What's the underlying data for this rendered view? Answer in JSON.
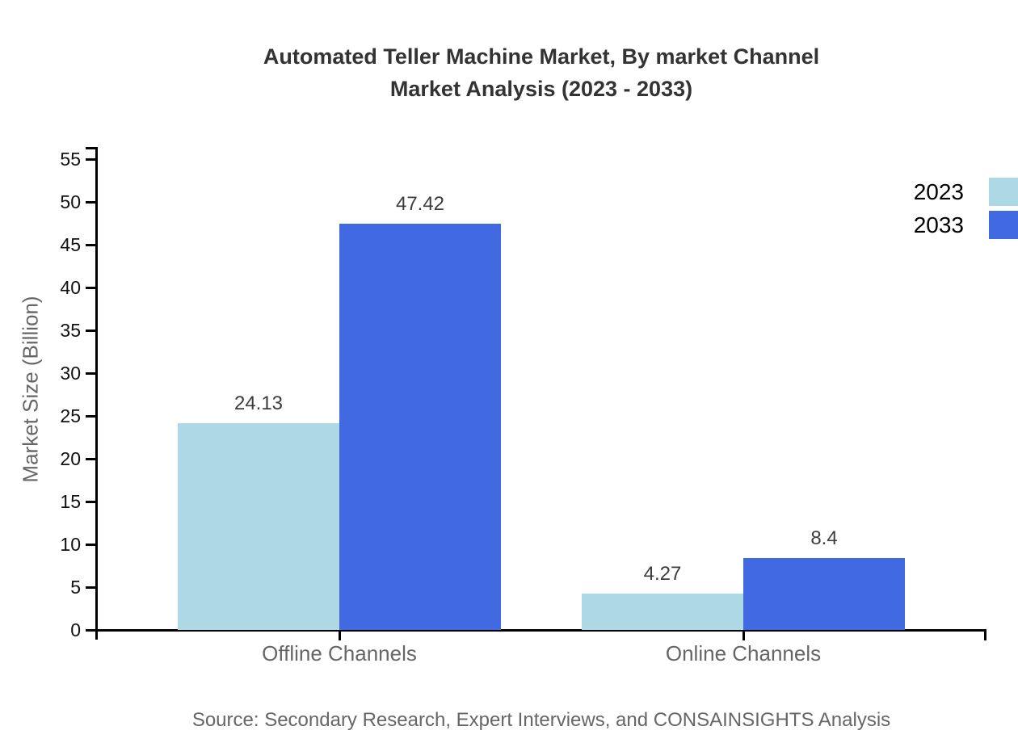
{
  "title": {
    "line1": "Automated Teller Machine Market, By market Channel",
    "line2": "Market Analysis (2023 - 2033)"
  },
  "source_note": "Source: Secondary Research, Expert Interviews, and CONSAINSIGHTS Analysis",
  "chart_data": {
    "type": "bar",
    "title": "Automated Teller Machine Market, By market Channel Market Analysis (2023 - 2033)",
    "categories": [
      "Offline Channels",
      "Online Channels"
    ],
    "series": [
      {
        "name": "2023",
        "color": "#ADD8E6",
        "values": [
          24.13,
          4.27
        ]
      },
      {
        "name": "2033",
        "color": "#4169E1",
        "values": [
          47.42,
          8.4
        ]
      }
    ],
    "value_labels": [
      [
        "24.13",
        "4.27"
      ],
      [
        "47.42",
        "8.4"
      ]
    ],
    "xlabel": "",
    "ylabel": "Market Size (Billion)",
    "ylim": [
      0,
      55
    ],
    "yticks": [
      0,
      5,
      10,
      15,
      20,
      25,
      30,
      35,
      40,
      45,
      50,
      55
    ],
    "grid": false,
    "legend_position": "top-right",
    "axis_color": "#000000",
    "value_label_color": "#3d3d3d"
  }
}
